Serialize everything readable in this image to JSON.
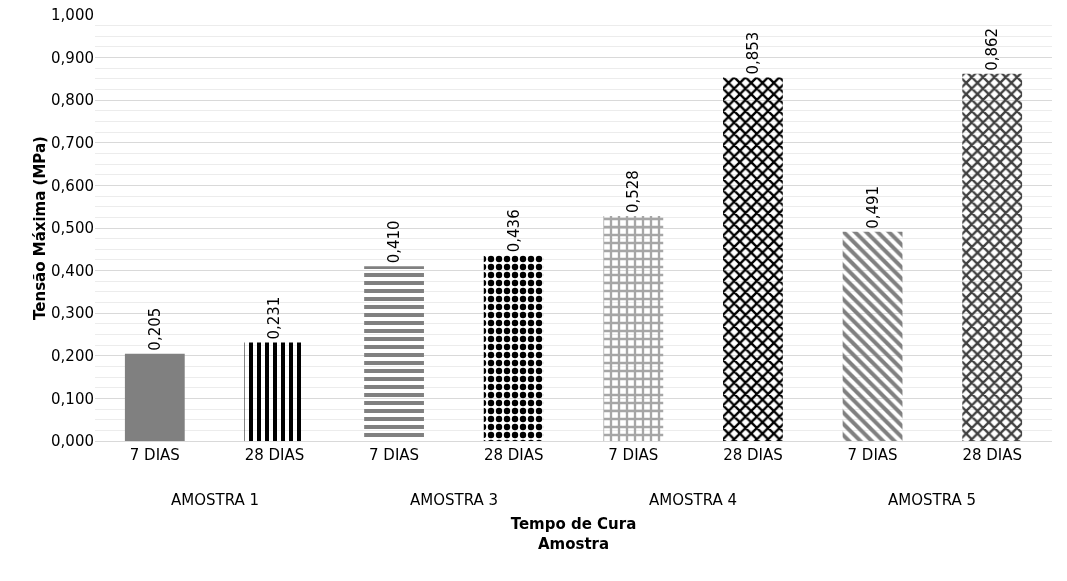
{
  "chart_data": {
    "type": "bar",
    "xlabel": "Tempo de Cura\nAmostra",
    "ylabel": "Tensão Máxima (MPa)",
    "categories": [
      "7 DIAS",
      "28 DIAS",
      "7 DIAS",
      "28 DIAS",
      "7 DIAS",
      "28 DIAS",
      "7 DIAS",
      "28 DIAS"
    ],
    "values": [
      0.205,
      0.231,
      0.41,
      0.436,
      0.528,
      0.853,
      0.491,
      0.862
    ],
    "value_labels": [
      "0,205",
      "0,231",
      "0,410",
      "0,436",
      "0,528",
      "0,853",
      "0,491",
      "0,862"
    ],
    "colors": [
      "#808080",
      "#000000",
      "#808080",
      "#000000",
      "#a6a6a6",
      "#000000",
      "#808080",
      "#404040"
    ],
    "annotations": [
      "AMOSTRA 1",
      "AMOSTRA 3",
      "AMOSTRA 4",
      "AMOSTRA 5"
    ],
    "ylim": [
      0,
      1
    ],
    "yticks": [
      {
        "value": 0,
        "label": "0,000"
      },
      {
        "value": 0.1,
        "label": "0,100"
      },
      {
        "value": 0.2,
        "label": "0,200"
      },
      {
        "value": 0.3,
        "label": "0,300"
      },
      {
        "value": 0.4,
        "label": "0,400"
      },
      {
        "value": 0.5,
        "label": "0,500"
      },
      {
        "value": 0.6,
        "label": "0,600"
      },
      {
        "value": 0.7,
        "label": "0,700"
      },
      {
        "value": 0.8,
        "label": "0,800"
      },
      {
        "value": 0.9,
        "label": "0,900"
      },
      {
        "value": 1,
        "label": "1,000"
      }
    ],
    "grid": true,
    "legend": false
  }
}
